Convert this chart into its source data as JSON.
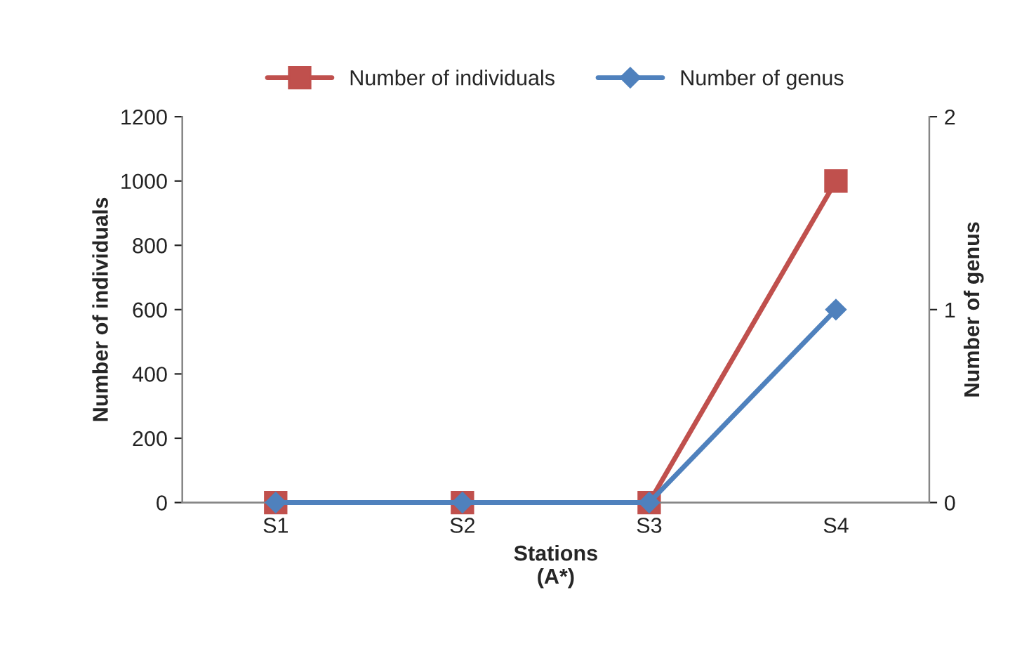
{
  "chart_data": {
    "type": "line",
    "xlabel": "Stations\n(A*)",
    "ylabel": "Number of individuals",
    "y2label": "Number of genus",
    "categories": [
      "S1",
      "S2",
      "S3",
      "S4"
    ],
    "series": [
      {
        "name": "Number of individuals",
        "color": "#c0504d",
        "marker": "square",
        "values": [
          0,
          0,
          0,
          1000
        ]
      },
      {
        "name": "Number of genus",
        "color": "#4f81bd",
        "marker": "diamond",
        "axis": "y2",
        "values": [
          0,
          0,
          0,
          1
        ]
      }
    ],
    "ylim": [
      0,
      1200
    ],
    "yticks": [
      0,
      200,
      400,
      600,
      800,
      1000,
      1200
    ],
    "y2lim": [
      0,
      2
    ],
    "y2ticks": [
      0,
      1,
      2
    ],
    "grid": false,
    "legend": "top"
  }
}
